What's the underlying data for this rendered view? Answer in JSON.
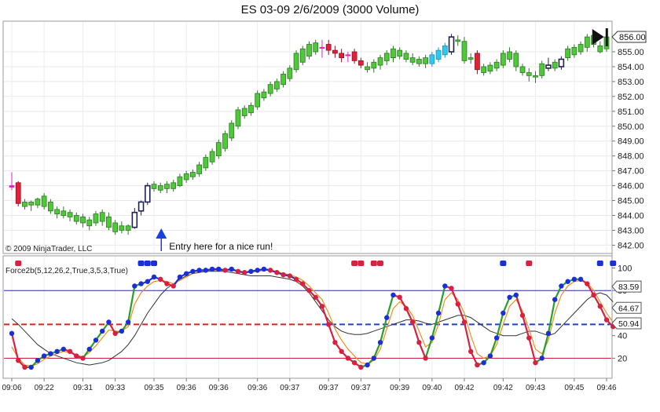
{
  "chart_data": [
    {
      "type": "candlestick",
      "title": "ES 03-09  2/6/2009 (3000 Volume)",
      "copyright": "© 2009 NinjaTrader, LLC",
      "annotation": {
        "text": "Entry here for a nice run!",
        "bar_index": 23
      },
      "ylim": [
        841.6,
        856.9
      ],
      "y_ticks": [
        "842.00",
        "843.00",
        "844.00",
        "845.00",
        "846.00",
        "847.00",
        "848.00",
        "849.00",
        "850.00",
        "851.00",
        "852.00",
        "853.00",
        "854.00",
        "855.00"
      ],
      "last_price_label": "856.00",
      "colors": {
        "up": "#4fc83a",
        "down": "#e2203a",
        "outline": "#1a1a1a",
        "hollow_dark": "#202050",
        "magenta": "#e020c0",
        "cyan": "#30c8f0"
      },
      "bars": [
        {
          "o": 845.9,
          "h": 846.9,
          "l": 845.7,
          "c": 846.0,
          "k": "magenta"
        },
        {
          "o": 846.2,
          "h": 846.3,
          "l": 844.6,
          "c": 844.8,
          "k": "down"
        },
        {
          "o": 844.6,
          "h": 845.1,
          "l": 844.4,
          "c": 844.9,
          "k": "up"
        },
        {
          "o": 844.7,
          "h": 845.0,
          "l": 844.3,
          "c": 844.9,
          "k": "up"
        },
        {
          "o": 844.7,
          "h": 845.2,
          "l": 844.5,
          "c": 845.1,
          "k": "up"
        },
        {
          "o": 844.6,
          "h": 845.5,
          "l": 844.4,
          "c": 845.3,
          "k": "up"
        },
        {
          "o": 844.3,
          "h": 845.1,
          "l": 844.1,
          "c": 844.9,
          "k": "up"
        },
        {
          "o": 844.1,
          "h": 844.6,
          "l": 843.8,
          "c": 844.4,
          "k": "up"
        },
        {
          "o": 844.0,
          "h": 844.6,
          "l": 843.8,
          "c": 844.3,
          "k": "up"
        },
        {
          "o": 843.9,
          "h": 844.4,
          "l": 843.6,
          "c": 844.2,
          "k": "up"
        },
        {
          "o": 843.6,
          "h": 844.2,
          "l": 843.4,
          "c": 844.0,
          "k": "up"
        },
        {
          "o": 843.5,
          "h": 844.1,
          "l": 843.2,
          "c": 843.9,
          "k": "up"
        },
        {
          "o": 843.3,
          "h": 843.9,
          "l": 843.0,
          "c": 843.7,
          "k": "up"
        },
        {
          "o": 843.5,
          "h": 844.3,
          "l": 843.3,
          "c": 844.1,
          "k": "up"
        },
        {
          "o": 843.6,
          "h": 844.4,
          "l": 843.3,
          "c": 844.2,
          "k": "up"
        },
        {
          "o": 843.2,
          "h": 844.2,
          "l": 843.0,
          "c": 843.9,
          "k": "up"
        },
        {
          "o": 842.9,
          "h": 843.7,
          "l": 842.7,
          "c": 843.5,
          "k": "up"
        },
        {
          "o": 843.0,
          "h": 843.6,
          "l": 842.8,
          "c": 843.3,
          "k": "up"
        },
        {
          "o": 843.0,
          "h": 843.4,
          "l": 842.7,
          "c": 843.3,
          "k": "up"
        },
        {
          "o": 843.2,
          "h": 844.5,
          "l": 843.1,
          "c": 844.2,
          "k": "hollow"
        },
        {
          "o": 844.3,
          "h": 845.0,
          "l": 844.0,
          "c": 844.9,
          "k": "hollow"
        },
        {
          "o": 844.9,
          "h": 846.2,
          "l": 844.7,
          "c": 846.0,
          "k": "hollow"
        },
        {
          "o": 845.8,
          "h": 846.3,
          "l": 845.6,
          "c": 846.1,
          "k": "up"
        },
        {
          "o": 845.7,
          "h": 846.2,
          "l": 845.5,
          "c": 846.0,
          "k": "up"
        },
        {
          "o": 845.8,
          "h": 846.3,
          "l": 845.5,
          "c": 846.1,
          "k": "up"
        },
        {
          "o": 845.8,
          "h": 846.4,
          "l": 845.6,
          "c": 846.2,
          "k": "up"
        },
        {
          "o": 846.0,
          "h": 846.8,
          "l": 845.9,
          "c": 846.6,
          "k": "up"
        },
        {
          "o": 846.4,
          "h": 847.0,
          "l": 846.2,
          "c": 846.8,
          "k": "up"
        },
        {
          "o": 846.6,
          "h": 847.1,
          "l": 846.4,
          "c": 846.9,
          "k": "up"
        },
        {
          "o": 846.8,
          "h": 847.6,
          "l": 846.6,
          "c": 847.4,
          "k": "up"
        },
        {
          "o": 847.2,
          "h": 848.1,
          "l": 847.0,
          "c": 847.9,
          "k": "up"
        },
        {
          "o": 847.6,
          "h": 848.5,
          "l": 847.4,
          "c": 848.3,
          "k": "up"
        },
        {
          "o": 848.0,
          "h": 849.1,
          "l": 847.8,
          "c": 848.9,
          "k": "up"
        },
        {
          "o": 848.5,
          "h": 849.7,
          "l": 848.3,
          "c": 849.5,
          "k": "up"
        },
        {
          "o": 849.2,
          "h": 850.4,
          "l": 849.0,
          "c": 850.2,
          "k": "up"
        },
        {
          "o": 850.0,
          "h": 851.3,
          "l": 849.8,
          "c": 851.1,
          "k": "up"
        },
        {
          "o": 850.7,
          "h": 851.4,
          "l": 850.5,
          "c": 851.2,
          "k": "up"
        },
        {
          "o": 850.9,
          "h": 851.6,
          "l": 850.7,
          "c": 851.4,
          "k": "up"
        },
        {
          "o": 851.3,
          "h": 852.4,
          "l": 851.1,
          "c": 852.2,
          "k": "up"
        },
        {
          "o": 851.9,
          "h": 852.5,
          "l": 851.7,
          "c": 852.3,
          "k": "up"
        },
        {
          "o": 852.2,
          "h": 853.0,
          "l": 852.0,
          "c": 852.8,
          "k": "up"
        },
        {
          "o": 852.5,
          "h": 853.2,
          "l": 852.3,
          "c": 853.0,
          "k": "up"
        },
        {
          "o": 852.8,
          "h": 853.7,
          "l": 852.6,
          "c": 853.5,
          "k": "up"
        },
        {
          "o": 853.2,
          "h": 854.1,
          "l": 853.0,
          "c": 853.9,
          "k": "up"
        },
        {
          "o": 853.8,
          "h": 855.1,
          "l": 853.6,
          "c": 854.9,
          "k": "up"
        },
        {
          "o": 854.3,
          "h": 855.4,
          "l": 854.1,
          "c": 855.2,
          "k": "up"
        },
        {
          "o": 854.7,
          "h": 855.7,
          "l": 854.5,
          "c": 855.5,
          "k": "up"
        },
        {
          "o": 855.0,
          "h": 855.8,
          "l": 854.8,
          "c": 855.6,
          "k": "up"
        },
        {
          "o": 855.3,
          "h": 855.8,
          "l": 854.6,
          "c": 855.3,
          "k": "magenta"
        },
        {
          "o": 855.5,
          "h": 855.8,
          "l": 854.8,
          "c": 855.1,
          "k": "down"
        },
        {
          "o": 855.1,
          "h": 855.4,
          "l": 854.6,
          "c": 854.9,
          "k": "down"
        },
        {
          "o": 854.9,
          "h": 855.2,
          "l": 854.3,
          "c": 854.6,
          "k": "down"
        },
        {
          "o": 854.8,
          "h": 855.0,
          "l": 854.3,
          "c": 854.8,
          "k": "magenta"
        },
        {
          "o": 855.0,
          "h": 855.2,
          "l": 854.2,
          "c": 854.4,
          "k": "down"
        },
        {
          "o": 854.4,
          "h": 854.6,
          "l": 853.9,
          "c": 854.1,
          "k": "down"
        },
        {
          "o": 853.8,
          "h": 854.3,
          "l": 853.6,
          "c": 854.0,
          "k": "up"
        },
        {
          "o": 853.9,
          "h": 854.5,
          "l": 853.6,
          "c": 854.3,
          "k": "up"
        },
        {
          "o": 854.1,
          "h": 854.8,
          "l": 853.8,
          "c": 854.6,
          "k": "up"
        },
        {
          "o": 854.4,
          "h": 855.1,
          "l": 854.1,
          "c": 854.9,
          "k": "up"
        },
        {
          "o": 854.6,
          "h": 855.4,
          "l": 854.3,
          "c": 855.2,
          "k": "up"
        },
        {
          "o": 854.7,
          "h": 855.3,
          "l": 854.5,
          "c": 855.1,
          "k": "up"
        },
        {
          "o": 854.5,
          "h": 855.1,
          "l": 854.3,
          "c": 854.9,
          "k": "up"
        },
        {
          "o": 854.3,
          "h": 854.9,
          "l": 854.1,
          "c": 854.6,
          "k": "up"
        },
        {
          "o": 854.2,
          "h": 854.7,
          "l": 854.0,
          "c": 854.5,
          "k": "up"
        },
        {
          "o": 854.2,
          "h": 854.8,
          "l": 853.9,
          "c": 854.6,
          "k": "up"
        },
        {
          "o": 854.2,
          "h": 855.0,
          "l": 854.0,
          "c": 854.8,
          "k": "cyan"
        },
        {
          "o": 854.5,
          "h": 855.3,
          "l": 854.3,
          "c": 855.1,
          "k": "cyan"
        },
        {
          "o": 854.8,
          "h": 855.6,
          "l": 854.6,
          "c": 855.4,
          "k": "cyan"
        },
        {
          "o": 855.0,
          "h": 856.2,
          "l": 854.8,
          "c": 856.0,
          "k": "hollow"
        },
        {
          "o": 855.8,
          "h": 856.1,
          "l": 855.4,
          "c": 855.7,
          "k": "up"
        },
        {
          "o": 855.7,
          "h": 856.0,
          "l": 854.2,
          "c": 854.4,
          "k": "up"
        },
        {
          "o": 854.5,
          "h": 854.9,
          "l": 854.2,
          "c": 854.6,
          "k": "up"
        },
        {
          "o": 854.9,
          "h": 855.1,
          "l": 853.5,
          "c": 853.8,
          "k": "down"
        },
        {
          "o": 853.6,
          "h": 854.2,
          "l": 853.4,
          "c": 854.0,
          "k": "up"
        },
        {
          "o": 853.7,
          "h": 854.3,
          "l": 853.5,
          "c": 854.1,
          "k": "up"
        },
        {
          "o": 853.9,
          "h": 854.5,
          "l": 853.7,
          "c": 854.3,
          "k": "up"
        },
        {
          "o": 854.1,
          "h": 855.1,
          "l": 853.9,
          "c": 854.9,
          "k": "up"
        },
        {
          "o": 854.5,
          "h": 855.3,
          "l": 854.3,
          "c": 855.0,
          "k": "up"
        },
        {
          "o": 854.9,
          "h": 855.1,
          "l": 853.7,
          "c": 854.0,
          "k": "up"
        },
        {
          "o": 853.6,
          "h": 854.2,
          "l": 853.4,
          "c": 854.0,
          "k": "up"
        },
        {
          "o": 853.4,
          "h": 853.9,
          "l": 853.0,
          "c": 853.6,
          "k": "up"
        },
        {
          "o": 853.3,
          "h": 853.7,
          "l": 852.9,
          "c": 853.4,
          "k": "up"
        },
        {
          "o": 853.4,
          "h": 854.4,
          "l": 853.2,
          "c": 854.2,
          "k": "up"
        },
        {
          "o": 853.9,
          "h": 854.6,
          "l": 853.7,
          "c": 854.1,
          "k": "hollow"
        },
        {
          "o": 853.9,
          "h": 854.5,
          "l": 853.7,
          "c": 854.3,
          "k": "up"
        },
        {
          "o": 854.0,
          "h": 854.7,
          "l": 853.8,
          "c": 854.5,
          "k": "hollow"
        },
        {
          "o": 854.6,
          "h": 855.4,
          "l": 854.4,
          "c": 855.2,
          "k": "up"
        },
        {
          "o": 854.8,
          "h": 855.5,
          "l": 854.6,
          "c": 855.3,
          "k": "up"
        },
        {
          "o": 855.0,
          "h": 855.7,
          "l": 854.8,
          "c": 855.5,
          "k": "up"
        },
        {
          "o": 855.3,
          "h": 856.2,
          "l": 855.0,
          "c": 856.0,
          "k": "up"
        },
        {
          "o": 855.5,
          "h": 856.3,
          "l": 855.3,
          "c": 856.1,
          "k": "up"
        },
        {
          "o": 855.0,
          "h": 855.7,
          "l": 854.9,
          "c": 855.4,
          "k": "up"
        },
        {
          "o": 855.2,
          "h": 856.2,
          "l": 855.0,
          "c": 856.0,
          "k": "up"
        }
      ]
    },
    {
      "type": "line",
      "title": "Force2b(5,12,26,2,True,3,5,3,True)",
      "ylim": [
        5,
        108
      ],
      "y_ticks": [
        "20",
        "40",
        "50",
        "60",
        "80",
        "100"
      ],
      "value_labels": [
        "83.59",
        "64.67",
        "50.94"
      ],
      "levels": [
        {
          "value": 80,
          "color": "#2a2aa0"
        },
        {
          "value": 20,
          "color": "#d02040"
        }
      ],
      "midline": {
        "value": 50,
        "left_color": "#e02020",
        "right_color": "#2040d0"
      },
      "x_labels": [
        "09:06",
        "09:22",
        "09:31",
        "09:33",
        "09:35",
        "09:36",
        "09:36",
        "09:36",
        "09:37",
        "09:37",
        "09:37",
        "09:39",
        "09:40",
        "09:42",
        "09:42",
        "09:43",
        "09:45",
        "09:46"
      ],
      "colors": {
        "force_up": "#27a027",
        "force_down": "#d82040",
        "dot_up": "#1a2fd8",
        "dot_down": "#d82040",
        "signal": "#f09020",
        "slow": "#333333",
        "panel_dot_up": "#1a2fd8",
        "panel_dot_down": "#d82040"
      },
      "series": {
        "force": [
          42,
          18,
          12,
          12,
          18,
          22,
          24,
          26,
          28,
          26,
          22,
          20,
          28,
          36,
          44,
          52,
          42,
          44,
          52,
          84,
          86,
          88,
          92,
          90,
          86,
          84,
          92,
          95,
          97,
          98,
          98,
          99,
          99,
          98,
          99,
          97,
          96,
          97,
          98,
          99,
          98,
          96,
          94,
          93,
          90,
          86,
          80,
          74,
          66,
          50,
          34,
          26,
          20,
          16,
          12,
          14,
          20,
          34,
          56,
          76,
          74,
          64,
          52,
          34,
          20,
          38,
          60,
          84,
          82,
          68,
          52,
          26,
          14,
          16,
          22,
          38,
          60,
          74,
          76,
          58,
          38,
          16,
          20,
          42,
          72,
          84,
          88,
          90,
          90,
          86,
          76,
          66,
          54,
          48
        ],
        "signal": [
          30,
          20,
          14,
          13,
          15,
          19,
          22,
          24,
          26,
          25,
          23,
          21,
          25,
          31,
          38,
          45,
          44,
          44,
          48,
          68,
          78,
          84,
          88,
          89,
          88,
          86,
          89,
          92,
          95,
          97,
          98,
          98,
          98,
          98,
          98,
          97,
          96,
          96,
          97,
          98,
          98,
          97,
          95,
          94,
          92,
          89,
          84,
          78,
          72,
          60,
          46,
          36,
          28,
          22,
          16,
          15,
          18,
          28,
          46,
          64,
          70,
          66,
          58,
          44,
          30,
          34,
          50,
          72,
          78,
          72,
          60,
          40,
          24,
          20,
          22,
          32,
          50,
          66,
          72,
          62,
          46,
          28,
          24,
          36,
          60,
          76,
          84,
          88,
          89,
          87,
          80,
          70,
          60,
          52
        ],
        "slow": [
          55,
          50,
          44,
          38,
          32,
          28,
          24,
          22,
          20,
          18,
          16,
          15,
          14,
          15,
          16,
          18,
          22,
          26,
          32,
          40,
          50,
          60,
          68,
          76,
          82,
          86,
          90,
          93,
          95,
          96,
          97,
          97,
          97,
          97,
          96,
          95,
          94,
          93,
          93,
          93,
          93,
          92,
          91,
          90,
          88,
          84,
          78,
          70,
          62,
          54,
          48,
          44,
          42,
          41,
          41,
          42,
          44,
          46,
          48,
          50,
          52,
          54,
          54,
          53,
          51,
          50,
          52,
          54,
          56,
          58,
          58,
          56,
          52,
          48,
          44,
          42,
          40,
          40,
          40,
          42,
          44,
          44,
          42,
          40,
          42,
          48,
          54,
          60,
          66,
          72,
          76,
          78,
          76,
          70
        ]
      },
      "top_dots": [
        {
          "i": 1,
          "k": "down"
        },
        {
          "i": 20,
          "k": "up"
        },
        {
          "i": 21,
          "k": "up"
        },
        {
          "i": 22,
          "k": "up"
        },
        {
          "i": 53,
          "k": "down"
        },
        {
          "i": 54,
          "k": "down"
        },
        {
          "i": 56,
          "k": "down"
        },
        {
          "i": 57,
          "k": "down"
        },
        {
          "i": 76,
          "k": "up"
        },
        {
          "i": 80,
          "k": "down"
        },
        {
          "i": 91,
          "k": "up"
        },
        {
          "i": 93,
          "k": "up"
        }
      ]
    }
  ]
}
